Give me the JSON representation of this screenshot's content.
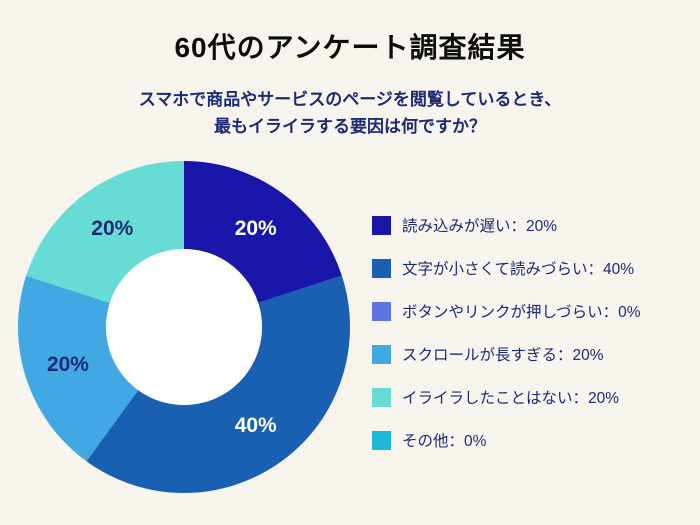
{
  "page": {
    "title": "60代のアンケート調査結果",
    "subtitle_line1": "スマホで商品やサービスのページを閲覧しているとき、",
    "subtitle_line2": "最もイライラする要因は何ですか？"
  },
  "colors": {
    "background": "#f7f4ee",
    "title_text": "#0d0d0d",
    "subtitle_text": "#1d2a75",
    "legend_text": "#1d2a75",
    "donut_hole": "#ffffff"
  },
  "chart_data": {
    "type": "pie",
    "donut": true,
    "inner_radius_ratio": 0.47,
    "start_angle_deg": 0,
    "direction": "clockwise",
    "legend_position": "right",
    "title": "60代のアンケート調査結果",
    "subtitle": "スマホで商品やサービスのページを閲覧しているとき、最もイライラする要因は何ですか？",
    "categories": [
      "読み込みが遅い",
      "文字が小さくて読みづらい",
      "ボタンやリンクが押しづらい",
      "スクロールが長すぎる",
      "イライラしたことはない",
      "その他"
    ],
    "values": [
      20,
      40,
      0,
      20,
      20,
      0
    ],
    "colors": [
      "#1b16aa",
      "#1a60b2",
      "#5e72e6",
      "#42a8e4",
      "#66dcd4",
      "#1fb9d8"
    ],
    "slice_label_colors": [
      "#ffffff",
      "#ffffff",
      null,
      "#1d2a75",
      "#1d2a75",
      null
    ],
    "slice_labels": [
      "20%",
      "40%",
      "",
      "20%",
      "20%",
      ""
    ],
    "legend": [
      "読み込みが遅い：20%",
      "文字が小さくて読みづらい：40%",
      "ボタンやリンクが押しづらい：0%",
      "スクロールが長すぎる：20%",
      "イライラしたことはない：20%",
      "その他：0%"
    ]
  }
}
